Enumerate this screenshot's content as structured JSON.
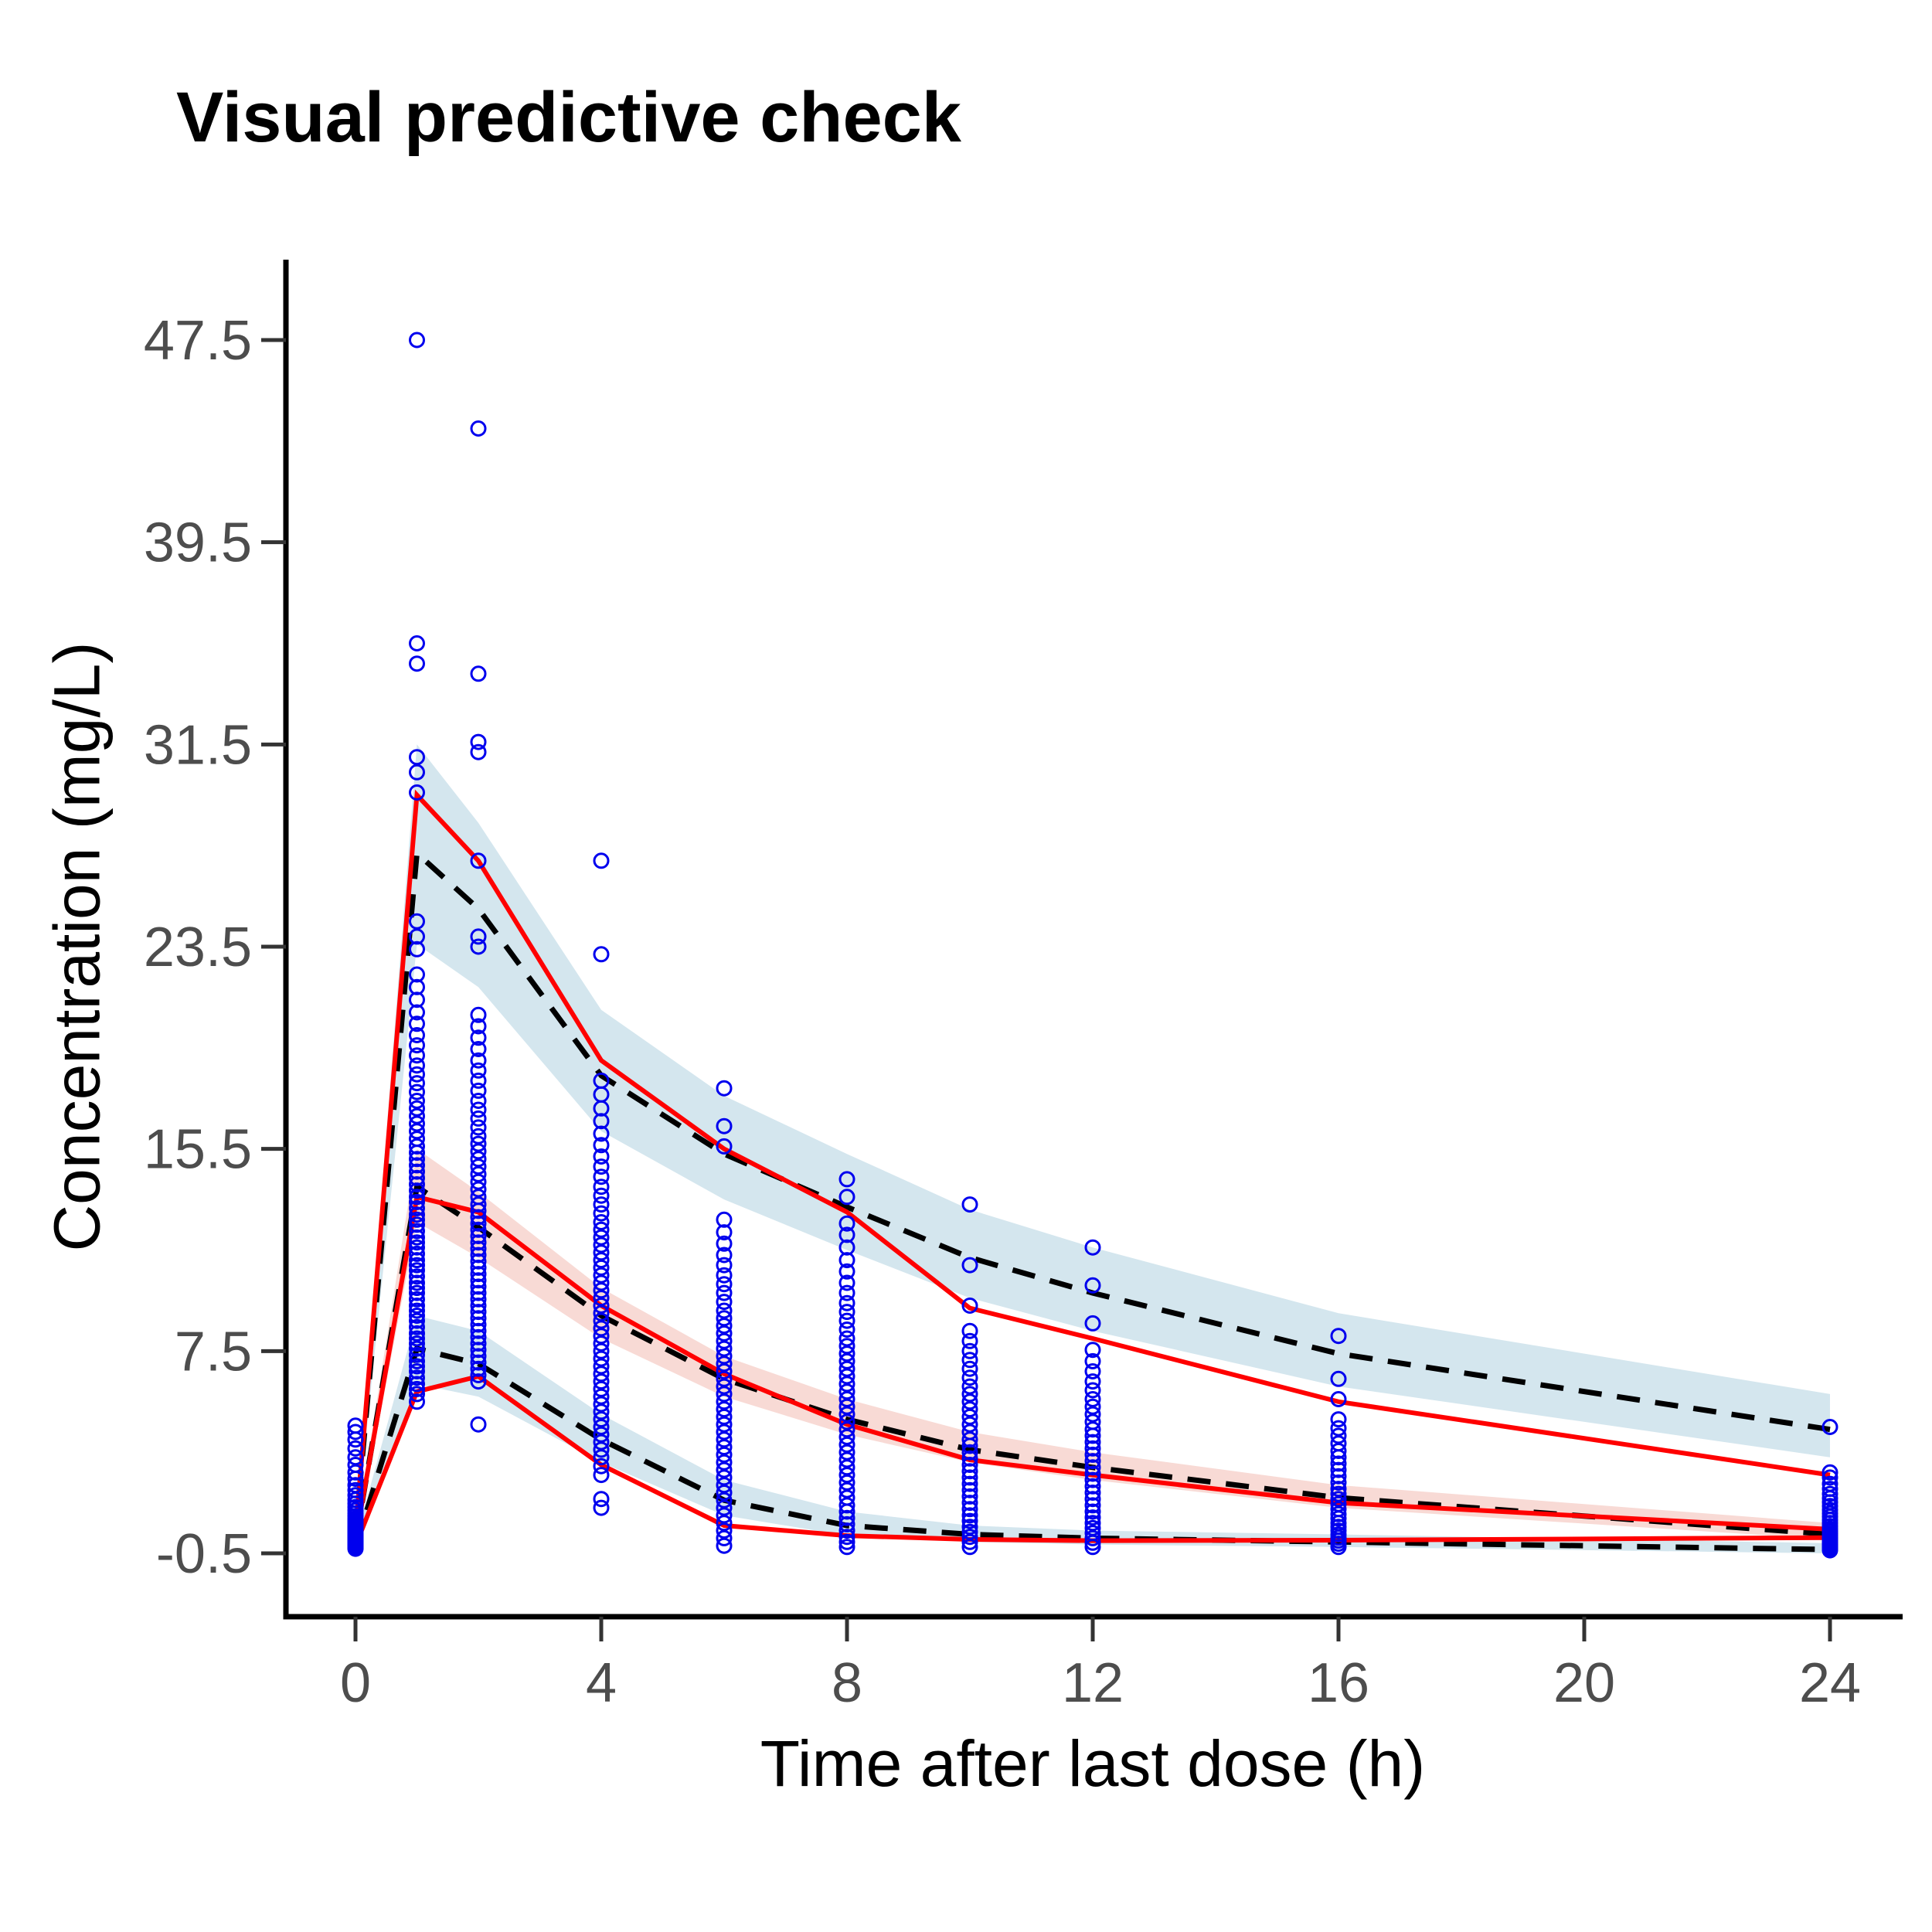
{
  "chart_data": {
    "type": "scatter",
    "title": "Visual predictive check",
    "xlabel": "Time after last dose (h)",
    "ylabel": "Concentration (mg/L)",
    "xticks": [
      0,
      4,
      8,
      12,
      16,
      20,
      24
    ],
    "yticks": [
      -0.5,
      7.5,
      15.5,
      23.5,
      31.5,
      39.5,
      47.5
    ],
    "xlim": [
      -1.2,
      25.2
    ],
    "ylim": [
      -3,
      50
    ],
    "grid": false,
    "legend": "none",
    "obs_times": [
      0,
      1,
      2,
      4,
      6,
      8,
      10,
      12,
      16,
      24
    ],
    "observed_percentiles": {
      "p95": [
        0.3,
        29.5,
        26.9,
        19.0,
        15.5,
        13.0,
        9.2,
        8.0,
        5.5,
        2.6
      ],
      "p50": [
        0.05,
        13.6,
        13.0,
        9.3,
        6.6,
        4.6,
        3.2,
        2.6,
        1.5,
        0.45
      ],
      "p5": [
        -0.2,
        5.9,
        6.5,
        3.0,
        0.6,
        0.2,
        0.05,
        0.0,
        0.02,
        0.12
      ]
    },
    "simulated_percentiles": {
      "p95": [
        0.3,
        27.2,
        25.0,
        18.4,
        15.3,
        13.2,
        11.2,
        9.8,
        7.4,
        4.4
      ],
      "p50": [
        0.0,
        14.0,
        12.4,
        8.9,
        6.4,
        4.8,
        3.6,
        2.9,
        1.7,
        0.25
      ],
      "p5": [
        -0.25,
        7.6,
        7.0,
        4.0,
        1.6,
        0.6,
        0.25,
        0.1,
        -0.05,
        -0.35
      ]
    },
    "ci_ribbons": {
      "p95": {
        "lo": [
          0.1,
          23.6,
          21.9,
          16.2,
          13.5,
          11.5,
          9.6,
          8.3,
          6.1,
          3.3
        ],
        "hi": [
          0.6,
          31.5,
          28.4,
          21.0,
          17.6,
          15.3,
          13.1,
          11.6,
          9.0,
          5.8
        ]
      },
      "p50": {
        "lo": [
          -0.15,
          12.6,
          11.2,
          8.0,
          5.7,
          4.2,
          3.1,
          2.4,
          1.3,
          0.05
        ],
        "hi": [
          0.25,
          15.5,
          13.8,
          10.0,
          7.3,
          5.6,
          4.3,
          3.5,
          2.2,
          0.7
        ]
      },
      "p5": {
        "lo": [
          -0.4,
          6.2,
          5.7,
          3.1,
          1.0,
          0.2,
          -0.05,
          -0.15,
          -0.25,
          -0.5
        ],
        "hi": [
          0.0,
          8.9,
          8.3,
          5.0,
          2.4,
          1.15,
          0.6,
          0.4,
          0.25,
          -0.1
        ]
      }
    },
    "observations": [
      {
        "time": 0,
        "values": [
          -0.32,
          -0.27,
          -0.22,
          -0.18,
          -0.15,
          -0.12,
          -0.09,
          -0.06,
          -0.03,
          0,
          0.03,
          0.06,
          0.09,
          0.12,
          0.16,
          0.2,
          0.24,
          0.28,
          0.33,
          0.38,
          0.43,
          0.49,
          0.55,
          0.62,
          0.7,
          0.78,
          0.87,
          0.97,
          1.08,
          1.2,
          1.33,
          1.47,
          1.62,
          1.8,
          2.0,
          2.2,
          2.45,
          2.7,
          3.0,
          3.3,
          3.65,
          4.0,
          4.3,
          4.55
        ]
      },
      {
        "time": 1,
        "values": [
          5.5,
          5.8,
          6.0,
          6.2,
          6.45,
          6.7,
          6.9,
          7.1,
          7.35,
          7.6,
          7.8,
          8.0,
          8.2,
          8.45,
          8.7,
          8.9,
          9.1,
          9.3,
          9.55,
          9.8,
          10.0,
          10.2,
          10.45,
          10.7,
          10.9,
          11.1,
          11.35,
          11.6,
          11.8,
          12.0,
          12.25,
          12.5,
          12.7,
          12.9,
          13.15,
          13.4,
          13.6,
          13.85,
          14.1,
          14.35,
          14.6,
          14.85,
          15.1,
          15.35,
          15.6,
          15.9,
          16.2,
          16.5,
          16.8,
          17.1,
          17.4,
          17.75,
          18.1,
          18.45,
          18.8,
          19.2,
          19.6,
          20.0,
          20.45,
          20.9,
          21.4,
          21.9,
          22.4,
          23.4,
          23.9,
          24.5,
          29.6,
          30.4,
          31.0,
          34.7,
          35.5,
          47.5
        ]
      },
      {
        "time": 2,
        "values": [
          4.6,
          6.3,
          6.55,
          6.8,
          7.05,
          7.3,
          7.55,
          7.8,
          8.05,
          8.3,
          8.55,
          8.8,
          9.05,
          9.3,
          9.55,
          9.8,
          10.05,
          10.3,
          10.55,
          10.8,
          11.05,
          11.3,
          11.55,
          11.8,
          12.05,
          12.3,
          12.55,
          12.8,
          13.05,
          13.3,
          13.6,
          13.9,
          14.2,
          14.5,
          14.8,
          15.1,
          15.4,
          15.7,
          16.0,
          16.35,
          16.7,
          17.05,
          17.4,
          17.8,
          18.2,
          18.6,
          19.0,
          19.45,
          19.9,
          20.35,
          20.8,
          23.5,
          23.9,
          26.9,
          31.2,
          31.6,
          34.3,
          44.0
        ]
      },
      {
        "time": 4,
        "values": [
          1.3,
          1.65,
          2.6,
          2.95,
          3.3,
          3.6,
          3.9,
          4.2,
          4.5,
          4.8,
          5.1,
          5.4,
          5.7,
          6.0,
          6.3,
          6.6,
          6.9,
          7.2,
          7.5,
          7.8,
          8.1,
          8.4,
          8.7,
          9.0,
          9.3,
          9.6,
          9.9,
          10.2,
          10.5,
          10.8,
          11.1,
          11.4,
          11.7,
          12.0,
          12.3,
          12.6,
          12.95,
          13.3,
          13.65,
          14.0,
          14.4,
          14.8,
          15.2,
          15.65,
          16.1,
          16.6,
          17.1,
          17.65,
          18.2,
          23.2,
          26.9
        ]
      },
      {
        "time": 6,
        "values": [
          -0.2,
          0.1,
          0.4,
          0.7,
          1.0,
          1.3,
          1.6,
          1.9,
          2.2,
          2.5,
          2.8,
          3.1,
          3.4,
          3.7,
          4.0,
          4.3,
          4.6,
          4.9,
          5.2,
          5.5,
          5.8,
          6.1,
          6.4,
          6.7,
          7.0,
          7.3,
          7.6,
          7.9,
          8.2,
          8.5,
          8.8,
          9.1,
          9.45,
          9.8,
          10.15,
          10.5,
          10.9,
          11.3,
          11.75,
          12.2,
          12.7,
          15.6,
          16.4,
          17.9
        ]
      },
      {
        "time": 8,
        "values": [
          -0.25,
          -0.05,
          0.15,
          0.4,
          0.65,
          0.9,
          1.15,
          1.4,
          1.7,
          2.0,
          2.3,
          2.6,
          2.9,
          3.2,
          3.5,
          3.8,
          4.1,
          4.4,
          4.7,
          5.0,
          5.3,
          5.6,
          5.9,
          6.2,
          6.5,
          6.8,
          7.1,
          7.4,
          7.7,
          8.0,
          8.35,
          8.7,
          9.05,
          9.4,
          9.8,
          10.2,
          10.65,
          11.1,
          11.6,
          12.1,
          12.55,
          13.6,
          14.3
        ]
      },
      {
        "time": 10,
        "values": [
          -0.25,
          -0.05,
          0.15,
          0.35,
          0.55,
          0.78,
          1.0,
          1.25,
          1.5,
          1.75,
          2.0,
          2.25,
          2.5,
          2.75,
          3.0,
          3.25,
          3.5,
          3.75,
          4.0,
          4.3,
          4.6,
          4.9,
          5.2,
          5.5,
          5.8,
          6.1,
          6.45,
          6.8,
          7.15,
          7.5,
          7.9,
          8.3,
          9.3,
          10.9,
          13.3
        ]
      },
      {
        "time": 12,
        "values": [
          -0.25,
          -0.08,
          0.1,
          0.3,
          0.5,
          0.7,
          0.92,
          1.15,
          1.4,
          1.65,
          1.9,
          2.15,
          2.4,
          2.65,
          2.9,
          3.15,
          3.4,
          3.65,
          3.9,
          4.15,
          4.4,
          4.7,
          5.0,
          5.3,
          5.6,
          5.95,
          6.3,
          6.7,
          7.1,
          7.55,
          8.6,
          10.1,
          11.6
        ]
      },
      {
        "time": 16,
        "values": [
          -0.25,
          -0.12,
          0.0,
          0.12,
          0.25,
          0.4,
          0.55,
          0.7,
          0.88,
          1.05,
          1.25,
          1.45,
          1.65,
          1.85,
          2.05,
          2.3,
          2.55,
          2.8,
          3.05,
          3.3,
          3.55,
          3.85,
          4.15,
          4.45,
          4.8,
          5.6,
          6.4,
          8.1
        ]
      },
      {
        "time": 24,
        "values": [
          -0.38,
          -0.32,
          -0.26,
          -0.2,
          -0.14,
          -0.08,
          -0.02,
          0.05,
          0.12,
          0.2,
          0.28,
          0.37,
          0.47,
          0.58,
          0.7,
          0.82,
          0.95,
          1.08,
          1.22,
          1.37,
          1.52,
          1.68,
          1.85,
          2.05,
          2.25,
          2.5,
          2.7,
          4.5
        ]
      }
    ],
    "colors": {
      "points": "#0000EE",
      "observed_line": "#FF0000",
      "simulated_line": "#000000",
      "outer_ribbon": "#D4E6EE",
      "median_ribbon": "#F8DAD5",
      "tick_label": "#4D4D4D",
      "axis": "#000000",
      "background": "#FFFFFF"
    }
  }
}
